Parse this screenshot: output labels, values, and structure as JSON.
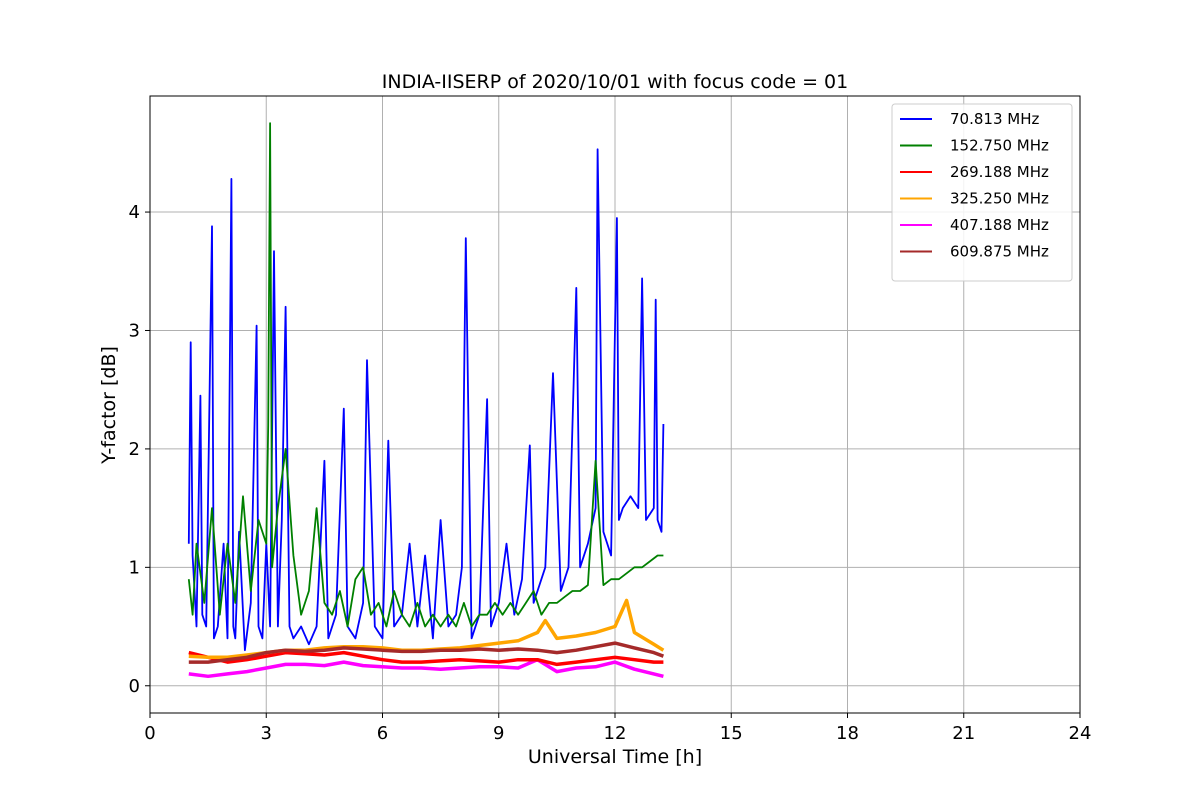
{
  "chart_data": {
    "type": "line",
    "title": "INDIA-IISERP of 2020/10/01 with focus code = 01",
    "xlabel": "Universal Time [h]",
    "ylabel": "Y-factor [dB]",
    "xlim": [
      0,
      24
    ],
    "ylim": [
      -0.23,
      4.98
    ],
    "xticks": [
      0,
      3,
      6,
      9,
      12,
      15,
      18,
      21,
      24
    ],
    "xtick_labels": [
      "0",
      "3",
      "6",
      "9",
      "12",
      "15",
      "18",
      "21",
      "24"
    ],
    "yticks": [
      0,
      1,
      2,
      3,
      4
    ],
    "ytick_labels": [
      "0",
      "1",
      "2",
      "3",
      "4"
    ],
    "grid": true,
    "legend_position": "top-right",
    "series": [
      {
        "name": " 70.813 MHz",
        "color": "#0000ff",
        "x": [
          1.0,
          1.05,
          1.1,
          1.2,
          1.3,
          1.35,
          1.45,
          1.6,
          1.65,
          1.75,
          1.9,
          2.0,
          2.1,
          2.15,
          2.2,
          2.3,
          2.45,
          2.6,
          2.75,
          2.8,
          2.9,
          3.0,
          3.1,
          3.2,
          3.3,
          3.4,
          3.5,
          3.6,
          3.7,
          3.9,
          4.1,
          4.3,
          4.5,
          4.6,
          4.8,
          5.0,
          5.1,
          5.3,
          5.5,
          5.6,
          5.8,
          6.0,
          6.15,
          6.3,
          6.5,
          6.7,
          6.9,
          7.1,
          7.3,
          7.5,
          7.7,
          7.9,
          8.05,
          8.15,
          8.3,
          8.5,
          8.7,
          8.8,
          9.0,
          9.2,
          9.4,
          9.6,
          9.8,
          9.9,
          10.0,
          10.2,
          10.4,
          10.6,
          10.8,
          11.0,
          11.1,
          11.3,
          11.5,
          11.55,
          11.7,
          11.9,
          12.05,
          12.1,
          12.2,
          12.4,
          12.6,
          12.7,
          12.8,
          13.0,
          13.05,
          13.1,
          13.2,
          13.25
        ],
        "y": [
          1.2,
          2.9,
          1.1,
          0.5,
          2.45,
          0.6,
          0.5,
          3.88,
          0.4,
          0.5,
          1.2,
          0.4,
          4.28,
          0.5,
          0.4,
          1.3,
          0.3,
          0.7,
          3.04,
          0.5,
          0.4,
          1.2,
          0.5,
          3.67,
          0.5,
          1.4,
          3.2,
          0.5,
          0.4,
          0.5,
          0.35,
          0.5,
          1.9,
          0.4,
          0.6,
          2.34,
          0.5,
          0.4,
          0.7,
          2.75,
          0.5,
          0.4,
          2.07,
          0.5,
          0.6,
          1.2,
          0.5,
          1.1,
          0.4,
          1.4,
          0.5,
          0.6,
          1.0,
          3.78,
          0.4,
          0.6,
          2.42,
          0.5,
          0.7,
          1.2,
          0.6,
          0.9,
          2.03,
          0.7,
          0.8,
          1.0,
          2.64,
          0.8,
          1.0,
          3.36,
          1.0,
          1.2,
          1.5,
          4.53,
          1.3,
          1.1,
          3.95,
          1.4,
          1.5,
          1.6,
          1.5,
          3.44,
          1.4,
          1.5,
          3.26,
          1.4,
          1.3,
          2.21
        ]
      },
      {
        "name": "152.750 MHz",
        "color": "#008000",
        "x": [
          1.0,
          1.1,
          1.2,
          1.4,
          1.6,
          1.8,
          2.0,
          2.2,
          2.4,
          2.6,
          2.8,
          3.0,
          3.05,
          3.1,
          3.15,
          3.3,
          3.5,
          3.7,
          3.9,
          4.1,
          4.3,
          4.5,
          4.7,
          4.9,
          5.1,
          5.3,
          5.5,
          5.7,
          5.9,
          6.1,
          6.3,
          6.5,
          6.7,
          6.9,
          7.1,
          7.3,
          7.5,
          7.7,
          7.9,
          8.1,
          8.3,
          8.5,
          8.7,
          8.9,
          9.1,
          9.3,
          9.5,
          9.7,
          9.9,
          10.1,
          10.3,
          10.5,
          10.7,
          10.9,
          11.1,
          11.3,
          11.5,
          11.7,
          11.9,
          12.1,
          12.3,
          12.5,
          12.7,
          12.9,
          13.1,
          13.25
        ],
        "y": [
          0.9,
          0.6,
          1.2,
          0.7,
          1.5,
          0.6,
          1.2,
          0.7,
          1.6,
          0.8,
          1.4,
          1.2,
          2.2,
          4.75,
          1.0,
          1.5,
          2.0,
          1.1,
          0.6,
          0.8,
          1.5,
          0.7,
          0.6,
          0.8,
          0.5,
          0.9,
          1.0,
          0.6,
          0.7,
          0.5,
          0.8,
          0.6,
          0.5,
          0.7,
          0.5,
          0.6,
          0.5,
          0.6,
          0.5,
          0.7,
          0.5,
          0.6,
          0.6,
          0.7,
          0.6,
          0.7,
          0.6,
          0.7,
          0.8,
          0.6,
          0.7,
          0.7,
          0.75,
          0.8,
          0.8,
          0.85,
          1.9,
          0.85,
          0.9,
          0.9,
          0.95,
          1.0,
          1.0,
          1.05,
          1.1,
          1.1
        ]
      },
      {
        "name": "269.188 MHz",
        "color": "#ff0000",
        "x": [
          1.0,
          1.5,
          2.0,
          2.5,
          3.0,
          3.5,
          4.0,
          4.5,
          5.0,
          5.5,
          6.0,
          6.5,
          7.0,
          7.5,
          8.0,
          8.5,
          9.0,
          9.5,
          10.0,
          10.5,
          11.0,
          11.5,
          12.0,
          12.5,
          13.0,
          13.25
        ],
        "y": [
          0.28,
          0.24,
          0.2,
          0.22,
          0.25,
          0.28,
          0.27,
          0.26,
          0.28,
          0.25,
          0.22,
          0.2,
          0.2,
          0.21,
          0.22,
          0.21,
          0.2,
          0.22,
          0.22,
          0.18,
          0.2,
          0.22,
          0.24,
          0.22,
          0.2,
          0.2
        ]
      },
      {
        "name": "325.250 MHz",
        "color": "#ffa500",
        "x": [
          1.0,
          1.5,
          2.0,
          2.5,
          3.0,
          3.5,
          4.0,
          4.5,
          5.0,
          5.5,
          6.0,
          6.5,
          7.0,
          7.5,
          8.0,
          8.5,
          9.0,
          9.5,
          10.0,
          10.2,
          10.5,
          11.0,
          11.5,
          12.0,
          12.3,
          12.5,
          13.0,
          13.25
        ],
        "y": [
          0.25,
          0.24,
          0.24,
          0.26,
          0.28,
          0.3,
          0.3,
          0.32,
          0.33,
          0.33,
          0.32,
          0.3,
          0.3,
          0.31,
          0.32,
          0.34,
          0.36,
          0.38,
          0.45,
          0.55,
          0.4,
          0.42,
          0.45,
          0.5,
          0.72,
          0.45,
          0.35,
          0.3
        ]
      },
      {
        "name": "407.188 MHz",
        "color": "#ff00ff",
        "x": [
          1.0,
          1.5,
          2.0,
          2.5,
          3.0,
          3.5,
          4.0,
          4.5,
          5.0,
          5.5,
          6.0,
          6.5,
          7.0,
          7.5,
          8.0,
          8.5,
          9.0,
          9.5,
          10.0,
          10.5,
          11.0,
          11.5,
          12.0,
          12.5,
          13.0,
          13.25
        ],
        "y": [
          0.1,
          0.08,
          0.1,
          0.12,
          0.15,
          0.18,
          0.18,
          0.17,
          0.2,
          0.17,
          0.16,
          0.15,
          0.15,
          0.14,
          0.15,
          0.16,
          0.16,
          0.15,
          0.22,
          0.12,
          0.15,
          0.16,
          0.2,
          0.14,
          0.1,
          0.08
        ]
      },
      {
        "name": "609.875 MHz",
        "color": "#a52a2a",
        "x": [
          1.0,
          1.5,
          2.0,
          2.5,
          3.0,
          3.5,
          4.0,
          4.5,
          5.0,
          5.5,
          6.0,
          6.5,
          7.0,
          7.5,
          8.0,
          8.5,
          9.0,
          9.5,
          10.0,
          10.5,
          11.0,
          11.5,
          12.0,
          12.5,
          13.0,
          13.25
        ],
        "y": [
          0.2,
          0.2,
          0.22,
          0.24,
          0.28,
          0.3,
          0.29,
          0.3,
          0.32,
          0.31,
          0.3,
          0.29,
          0.29,
          0.3,
          0.3,
          0.31,
          0.3,
          0.31,
          0.3,
          0.28,
          0.3,
          0.33,
          0.36,
          0.32,
          0.28,
          0.25
        ]
      }
    ]
  }
}
